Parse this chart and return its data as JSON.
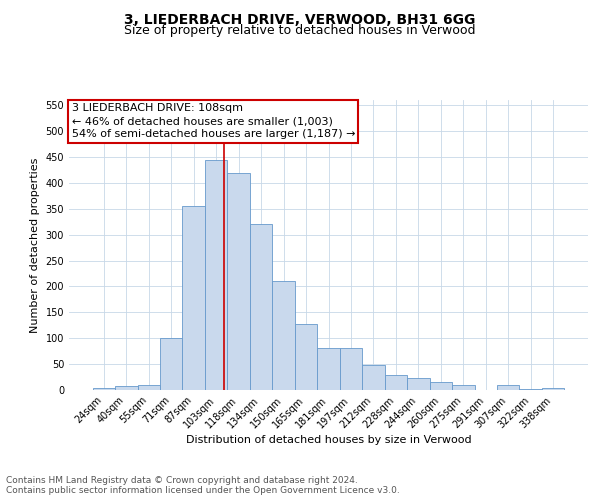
{
  "title_line1": "3, LIEDERBACH DRIVE, VERWOOD, BH31 6GG",
  "title_line2": "Size of property relative to detached houses in Verwood",
  "xlabel": "Distribution of detached houses by size in Verwood",
  "ylabel": "Number of detached properties",
  "bin_labels": [
    "24sqm",
    "40sqm",
    "55sqm",
    "71sqm",
    "87sqm",
    "103sqm",
    "118sqm",
    "134sqm",
    "150sqm",
    "165sqm",
    "181sqm",
    "197sqm",
    "212sqm",
    "228sqm",
    "244sqm",
    "260sqm",
    "275sqm",
    "291sqm",
    "307sqm",
    "322sqm",
    "338sqm"
  ],
  "bar_heights": [
    3,
    7,
    10,
    100,
    355,
    445,
    420,
    320,
    210,
    128,
    82,
    82,
    48,
    29,
    24,
    16,
    10,
    0,
    10,
    2,
    3
  ],
  "bar_color": "#c9d9ed",
  "bar_edge_color": "#6699cc",
  "vline_color": "#cc0000",
  "annotation_text": "3 LIEDERBACH DRIVE: 108sqm\n← 46% of detached houses are smaller (1,003)\n54% of semi-detached houses are larger (1,187) →",
  "annotation_box_color": "#ffffff",
  "annotation_box_edge_color": "#cc0000",
  "ylim": [
    0,
    560
  ],
  "yticks": [
    0,
    50,
    100,
    150,
    200,
    250,
    300,
    350,
    400,
    450,
    500,
    550
  ],
  "footnote": "Contains HM Land Registry data © Crown copyright and database right 2024.\nContains public sector information licensed under the Open Government Licence v3.0.",
  "bg_color": "#ffffff",
  "grid_color": "#c8d8e8",
  "title_fontsize": 10,
  "subtitle_fontsize": 9,
  "axis_label_fontsize": 8,
  "tick_fontsize": 7,
  "annotation_fontsize": 8,
  "footnote_fontsize": 6.5
}
